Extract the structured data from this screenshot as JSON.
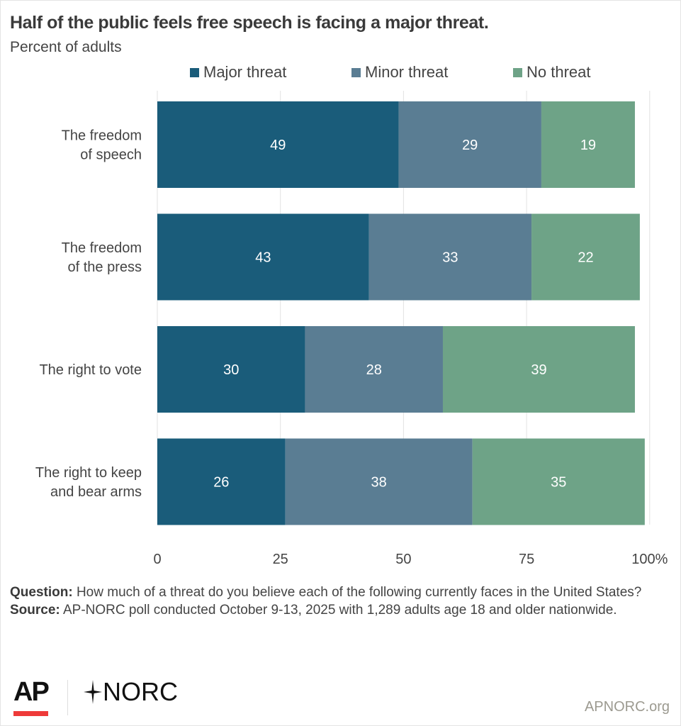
{
  "title": "Half of the public feels free speech is facing a major threat.",
  "subtitle": "Percent of adults",
  "colors": {
    "major": "#1a5c7a",
    "minor": "#5a7d93",
    "none": "#6ea387",
    "grid": "#e2e2e2",
    "ap_red": "#ee3a39"
  },
  "legend": [
    {
      "label": "Major threat",
      "color": "#1a5c7a"
    },
    {
      "label": "Minor threat",
      "color": "#5a7d93"
    },
    {
      "label": "No threat",
      "color": "#6ea387"
    }
  ],
  "chart_data": {
    "type": "bar",
    "orientation": "horizontal",
    "stacked": true,
    "title": "Half of the public feels free speech is facing a major threat.",
    "subtitle": "Percent of adults",
    "xlabel": "",
    "ylabel": "",
    "xlim": [
      0,
      100
    ],
    "grid": true,
    "legend_position": "top",
    "x_ticks": [
      0,
      25,
      50,
      75,
      100
    ],
    "x_tick_labels": [
      "0",
      "25",
      "50",
      "75",
      "100%"
    ],
    "categories": [
      [
        "The freedom",
        "of speech"
      ],
      [
        "The freedom",
        "of the press"
      ],
      [
        "The right to vote"
      ],
      [
        "The right to keep",
        "and bear arms"
      ]
    ],
    "series": [
      {
        "name": "Major threat",
        "color": "#1a5c7a",
        "values": [
          49,
          43,
          30,
          26
        ]
      },
      {
        "name": "Minor threat",
        "color": "#5a7d93",
        "values": [
          29,
          33,
          28,
          38
        ]
      },
      {
        "name": "No threat",
        "color": "#6ea387",
        "values": [
          19,
          22,
          39,
          35
        ]
      }
    ]
  },
  "footnote": {
    "question_label": "Question:",
    "question_text": " How much of a threat do you believe each of the following currently faces in the United States?",
    "source_label": "Source:",
    "source_text": " AP-NORC poll conducted October 9-13, 2025 with 1,289 adults age 18 and older nationwide."
  },
  "logos": {
    "ap": "AP",
    "norc": "NORC"
  },
  "site": "APNORC.org"
}
